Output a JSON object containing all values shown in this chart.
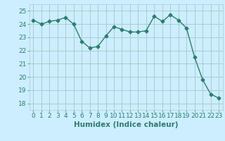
{
  "x": [
    0,
    1,
    2,
    3,
    4,
    5,
    6,
    7,
    8,
    9,
    10,
    11,
    12,
    13,
    14,
    15,
    16,
    17,
    18,
    19,
    20,
    21,
    22,
    23
  ],
  "y": [
    24.3,
    24.0,
    24.2,
    24.3,
    24.5,
    24.0,
    22.7,
    22.2,
    22.3,
    23.1,
    23.8,
    23.6,
    23.4,
    23.4,
    23.5,
    24.6,
    24.2,
    24.7,
    24.3,
    23.7,
    21.5,
    19.8,
    18.7,
    18.4
  ],
  "line_color": "#2e7d6e",
  "marker": "D",
  "marker_size": 2.5,
  "bg_color": "#cceeff",
  "grid_color": "#aacccc",
  "xlabel": "Humidex (Indice chaleur)",
  "ylim": [
    17.5,
    25.5
  ],
  "xlim": [
    -0.5,
    23.5
  ],
  "yticks": [
    18,
    19,
    20,
    21,
    22,
    23,
    24,
    25
  ],
  "xticks": [
    0,
    1,
    2,
    3,
    4,
    5,
    6,
    7,
    8,
    9,
    10,
    11,
    12,
    13,
    14,
    15,
    16,
    17,
    18,
    19,
    20,
    21,
    22,
    23
  ],
  "tick_color": "#2e7d6e",
  "xlabel_fontsize": 7.5,
  "tick_fontsize": 6.5,
  "line_width": 1.0
}
